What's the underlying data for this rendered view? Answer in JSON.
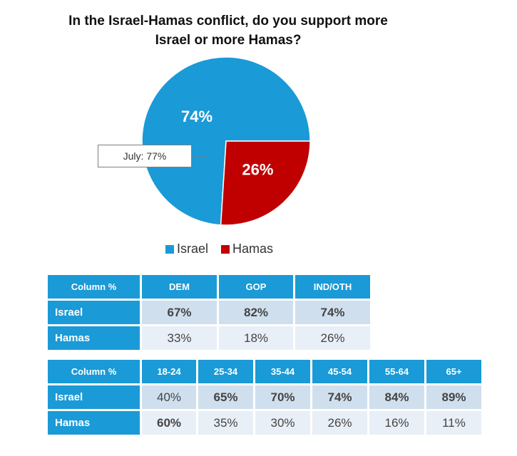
{
  "chart_data": {
    "type": "pie",
    "title_line1": "In the Israel-Hamas conflict, do you support more",
    "title_line2": "Israel or more Hamas?",
    "slices": [
      {
        "name": "Israel",
        "value": 74,
        "label": "74%",
        "color": "#1a9ad6"
      },
      {
        "name": "Hamas",
        "value": 26,
        "label": "26%",
        "color": "#c00000"
      }
    ],
    "callout": "July: 77%",
    "legend_position": "bottom"
  },
  "table1": {
    "corner": "Column %",
    "columns": [
      "DEM",
      "GOP",
      "IND/OTH"
    ],
    "rows": [
      {
        "label": "Israel",
        "values": [
          "67%",
          "82%",
          "74%"
        ],
        "bold": [
          true,
          true,
          true
        ]
      },
      {
        "label": "Hamas",
        "values": [
          "33%",
          "18%",
          "26%"
        ],
        "bold": [
          false,
          false,
          false
        ]
      }
    ]
  },
  "table2": {
    "corner": "Column %",
    "columns": [
      "18-24",
      "25-34",
      "35-44",
      "45-54",
      "55-64",
      "65+"
    ],
    "rows": [
      {
        "label": "Israel",
        "values": [
          "40%",
          "65%",
          "70%",
          "74%",
          "84%",
          "89%"
        ],
        "bold": [
          false,
          true,
          true,
          true,
          true,
          true
        ]
      },
      {
        "label": "Hamas",
        "values": [
          "60%",
          "35%",
          "30%",
          "26%",
          "16%",
          "11%"
        ],
        "bold": [
          true,
          false,
          false,
          false,
          false,
          false
        ]
      }
    ]
  }
}
